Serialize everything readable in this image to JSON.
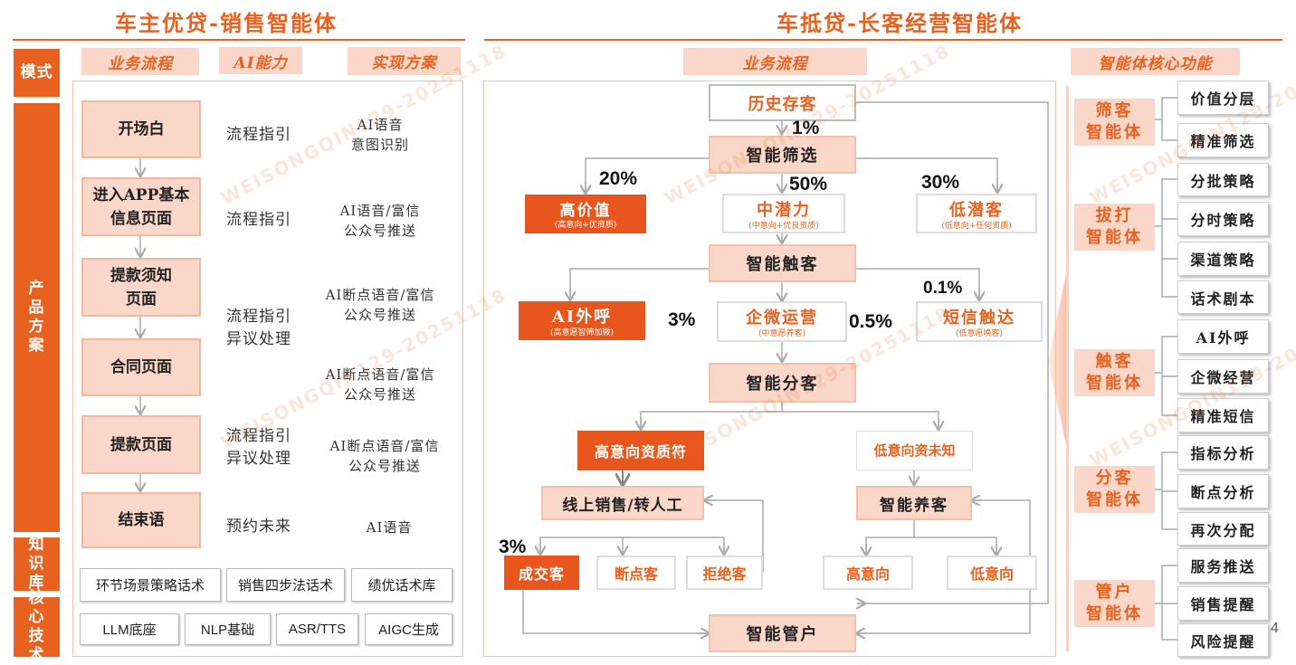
{
  "left": {
    "title": "车主优贷-销售智能体",
    "headers": [
      "业务流程",
      "AI能力",
      "实现方案"
    ],
    "sidebar": [
      "模式",
      "产品方案",
      "知识库",
      "核心技术"
    ],
    "rows": [
      {
        "step": "开场白",
        "ability": "流程指引",
        "solution": "AI语音\n意图识别"
      },
      {
        "step": "进入APP基本信息页面",
        "ability": "流程指引",
        "solution": "AI语音/富信\n公众号推送"
      },
      {
        "step": "提款须知页面",
        "ability": "流程指引\n异议处理",
        "solution": "AI断点语音/富信\n公众号推送"
      },
      {
        "step": "合同页面",
        "ability": "",
        "solution": "AI断点语音/富信\n公众号推送"
      },
      {
        "step": "提款页面",
        "ability": "流程指引\n异议处理",
        "solution": "AI断点语音/富信\n公众号推送"
      },
      {
        "step": "结束语",
        "ability": "预约未来",
        "solution": "AI语音"
      }
    ],
    "knowledge": [
      "环节场景策略话术",
      "销售四步法话术",
      "绩优话术库"
    ],
    "tech": [
      "LLM底座",
      "NLP基础",
      "ASR/TTS",
      "AIGC生成"
    ]
  },
  "right": {
    "title": "车抵贷-长客经营智能体",
    "headers": {
      "flow": "业务流程",
      "core": "智能体核心功能"
    },
    "flow": {
      "history": "历史存客",
      "screen": "智能筛选",
      "high_value": "高价值",
      "high_value_sub": "(高意向+优资质)",
      "mid_potential": "中潜力",
      "mid_potential_sub": "(中意向+优良资质)",
      "low_potential": "低潜客",
      "low_potential_sub": "(低意向+任何资质)",
      "touch": "智能触客",
      "ai_call": "AI外呼",
      "ai_call_sub": "(高意愿智筛加微)",
      "wecom": "企微运营",
      "wecom_sub": "(中意愿养客)",
      "sms": "短信触达",
      "sms_sub": "(低意愿唤客)",
      "divide": "智能分客",
      "high_intent_ok": "高意向资质符",
      "low_intent_unknown": "低意向资未知",
      "online_sales": "线上销售/转人工",
      "nurture": "智能养客",
      "deal": "成交客",
      "breakpoint": "断点客",
      "reject": "拒绝客",
      "high_intent": "高意向",
      "low_intent": "低意向",
      "manage": "智能管户"
    },
    "percents": {
      "p1": "1%",
      "p20": "20%",
      "p50": "50%",
      "p30": "30%",
      "p01": "0.1%",
      "p3a": "3%",
      "p05": "0.5%",
      "p3b": "3%"
    },
    "agents": [
      {
        "name": "筛客\n智能体",
        "functions": [
          "价值分层",
          "精准筛选"
        ]
      },
      {
        "name": "拔打\n智能体",
        "functions": [
          "分批策略",
          "分时策略",
          "渠道策略",
          "话术剧本"
        ]
      },
      {
        "name": "触客\n智能体",
        "functions": [
          "AI外呼",
          "企微经营",
          "精准短信"
        ]
      },
      {
        "name": "分客\n智能体",
        "functions": [
          "指标分析",
          "断点分析",
          "再次分配"
        ]
      },
      {
        "name": "管户\n智能体",
        "functions": [
          "服务推送",
          "销售提醒",
          "风险提醒"
        ]
      }
    ],
    "page_number": "4"
  },
  "watermark": "WEISONGQIN129-20251118",
  "colors": {
    "accent": "#e8611f",
    "fill": "#fad7c8",
    "dark_fill": "#e8561d"
  }
}
